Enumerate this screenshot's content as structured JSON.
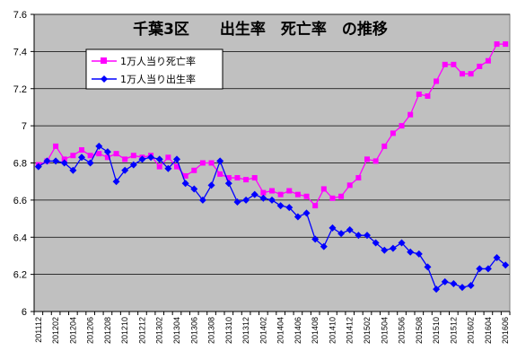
{
  "chart_data": {
    "type": "line",
    "title": "千葉3区　　出生率　死亡率　の推移",
    "ylim": [
      6,
      7.6
    ],
    "yticks": [
      "6",
      "6.2",
      "6.4",
      "6.6",
      "6.8",
      "7",
      "7.2",
      "7.4",
      "7.6"
    ],
    "ytick_values": [
      6,
      6.2,
      6.4,
      6.6,
      6.8,
      7.0,
      7.2,
      7.4,
      7.6
    ],
    "x": [
      "201112",
      "201201",
      "201202",
      "201203",
      "201204",
      "201205",
      "201206",
      "201207",
      "201208",
      "201209",
      "201210",
      "201211",
      "201212",
      "201301",
      "201302",
      "201303",
      "201304",
      "201305",
      "201306",
      "201307",
      "201308",
      "201309",
      "201310",
      "201311",
      "201312",
      "201401",
      "201402",
      "201403",
      "201404",
      "201405",
      "201406",
      "201407",
      "201408",
      "201409",
      "201410",
      "201411",
      "201412",
      "201501",
      "201502",
      "201503",
      "201504",
      "201505",
      "201506",
      "201507",
      "201508",
      "201509",
      "201510",
      "201511",
      "201512",
      "201601",
      "201602",
      "201603",
      "201604",
      "201605",
      "201606"
    ],
    "xtick_labels": [
      "201112",
      "201202",
      "201204",
      "201206",
      "201208",
      "201210",
      "201212",
      "201302",
      "201304",
      "201306",
      "201308",
      "201310",
      "201312",
      "201402",
      "201404",
      "201406",
      "201408",
      "201410",
      "201412",
      "201502",
      "201504",
      "201506",
      "201508",
      "201510",
      "201512",
      "201602",
      "201604",
      "201606"
    ],
    "grid": true,
    "legend_position": "top-left",
    "series": [
      {
        "name": "1万人当り死亡率",
        "color": "#ff00ff",
        "marker": "square",
        "values": [
          6.79,
          6.81,
          6.89,
          6.82,
          6.84,
          6.87,
          6.84,
          6.85,
          6.83,
          6.85,
          6.82,
          6.84,
          6.83,
          6.84,
          6.78,
          6.83,
          6.78,
          6.73,
          6.76,
          6.8,
          6.8,
          6.74,
          6.72,
          6.72,
          6.71,
          6.72,
          6.64,
          6.65,
          6.63,
          6.65,
          6.63,
          6.62,
          6.57,
          6.66,
          6.61,
          6.62,
          6.68,
          6.72,
          6.82,
          6.81,
          6.89,
          6.96,
          7.0,
          7.06,
          7.17,
          7.16,
          7.24,
          7.33,
          7.33,
          7.28,
          7.28,
          7.32,
          7.35,
          7.44,
          7.44
        ]
      },
      {
        "name": "1万人当り出生率",
        "color": "#0000ff",
        "marker": "diamond",
        "values": [
          6.78,
          6.81,
          6.81,
          6.8,
          6.76,
          6.83,
          6.8,
          6.89,
          6.86,
          6.7,
          6.76,
          6.79,
          6.82,
          6.83,
          6.82,
          6.77,
          6.82,
          6.69,
          6.66,
          6.6,
          6.68,
          6.81,
          6.69,
          6.59,
          6.6,
          6.63,
          6.61,
          6.6,
          6.57,
          6.56,
          6.51,
          6.53,
          6.39,
          6.35,
          6.45,
          6.42,
          6.44,
          6.41,
          6.41,
          6.37,
          6.33,
          6.34,
          6.37,
          6.32,
          6.31,
          6.24,
          6.12,
          6.16,
          6.15,
          6.13,
          6.14,
          6.23,
          6.23,
          6.29,
          6.25
        ]
      }
    ]
  },
  "colors": {
    "plot_background": "#c0c0c0",
    "gridline": "#000000",
    "legend_background": "#ffffff"
  }
}
